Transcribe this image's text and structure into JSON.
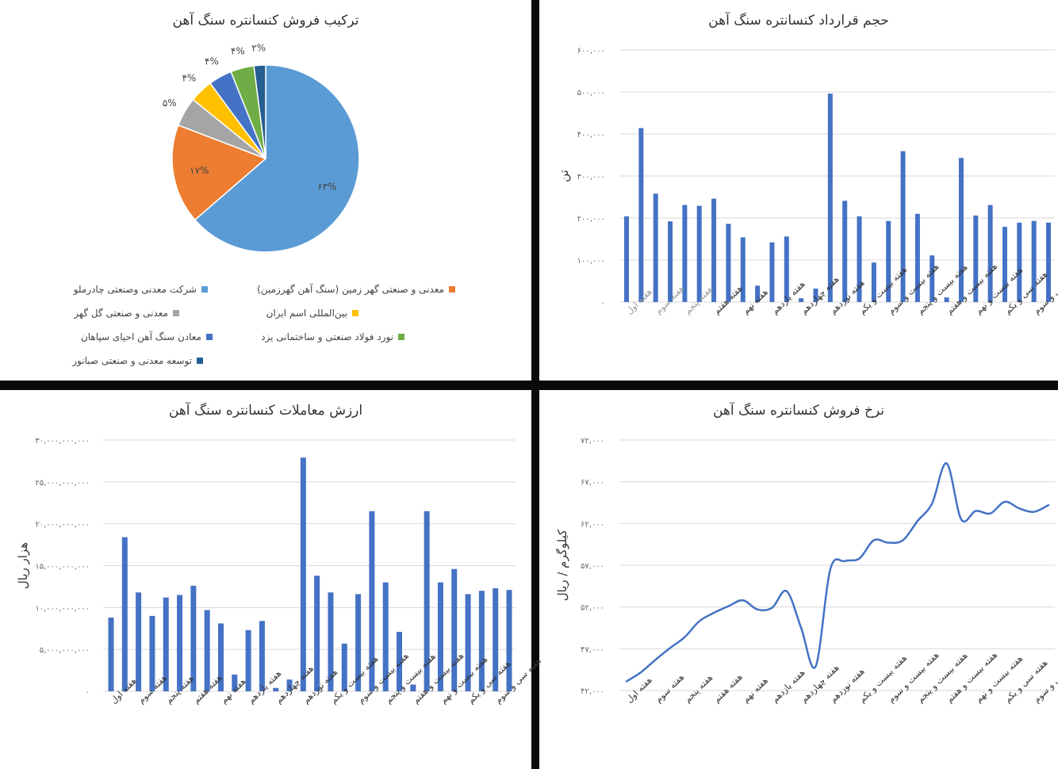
{
  "week_labels": [
    "هفته اول",
    "هفته سوم",
    "هفته پنجم",
    "هفته هفتم",
    "هفته نهم",
    "هفته یازدهم",
    "هفته چهاردهم",
    "هفته نوزدهم",
    "هفته بیست و یکم",
    "هفته بیست و سوم",
    "هفته بیست و پنجم",
    "هفته بیست و هفتم",
    "هفته بیست و نهم",
    "هفته سی و یکم",
    "هفته سی و سوم"
  ],
  "chart_data": [
    {
      "id": "pie",
      "type": "pie",
      "title": "ترکیب فروش کنسانتره سنگ آهن",
      "legend_position": "bottom",
      "slices": [
        {
          "name": "شرکت معدنی وصنعتی چادرملو",
          "value": 63,
          "label": "۶۳%",
          "color": "#5B9BD5"
        },
        {
          "name": "معدنی و صنعتی گهر زمین (سنگ آهن گهرزمین)",
          "value": 17,
          "label": "۱۷%",
          "color": "#ED7D31"
        },
        {
          "name": "معدنی و صنعتی گل گهر",
          "value": 5,
          "label": "۵%",
          "color": "#A5A5A5"
        },
        {
          "name": "بین‌المللی اسم ایران",
          "value": 4,
          "label": "۴%",
          "color": "#FFC000"
        },
        {
          "name": "معادن سنگ آهن احیای سپاهان",
          "value": 4,
          "label": "۴%",
          "color": "#4472C4"
        },
        {
          "name": "نورد فولاد صنعتی و ساختمانی یزد",
          "value": 4,
          "label": "۴%",
          "color": "#70AD47"
        },
        {
          "name": "توسعه معدنی و صنعتی صبانور",
          "value": 2,
          "label": "۲%",
          "color": "#255E91"
        }
      ]
    },
    {
      "id": "volume",
      "type": "bar",
      "title": "حجم قرارداد کنسانتره سنگ آهن",
      "ylabel": "تن",
      "ylim": [
        0,
        600000
      ],
      "yticks": [
        "۰",
        "۱۰۰,۰۰۰",
        "۲۰۰,۰۰۰",
        "۳۰۰,۰۰۰",
        "۴۰۰,۰۰۰",
        "۵۰۰,۰۰۰",
        "۶۰۰,۰۰۰"
      ],
      "grid": true,
      "color": "#4472C4",
      "values": [
        204000,
        414000,
        258000,
        192000,
        231000,
        229000,
        246000,
        186000,
        154000,
        39000,
        142000,
        156000,
        9000,
        32000,
        496000,
        241000,
        204000,
        94000,
        193000,
        359000,
        210000,
        111000,
        11000,
        343000,
        206000,
        231000,
        179000,
        189000,
        193000,
        189000
      ]
    },
    {
      "id": "value",
      "type": "bar",
      "title": "ارزش معاملات کنسانتره سنگ آهن",
      "ylabel": "هزار ریال",
      "ylim": [
        0,
        30000000000
      ],
      "yticks": [
        "۰",
        "۵,۰۰۰,۰۰۰,۰۰۰",
        "۱۰,۰۰۰,۰۰۰,۰۰۰",
        "۱۵,۰۰۰,۰۰۰,۰۰۰",
        "۲۰,۰۰۰,۰۰۰,۰۰۰",
        "۲۵,۰۰۰,۰۰۰,۰۰۰",
        "۳۰,۰۰۰,۰۰۰,۰۰۰"
      ],
      "grid": true,
      "color": "#4472C4",
      "values": [
        8800000000,
        18400000000,
        11800000000,
        9000000000,
        11200000000,
        11500000000,
        12600000000,
        9700000000,
        8100000000,
        2000000000,
        7300000000,
        8400000000,
        400000000,
        1400000000,
        27900000000,
        13800000000,
        11800000000,
        5700000000,
        11600000000,
        21500000000,
        13000000000,
        7100000000,
        800000000,
        21500000000,
        13000000000,
        14600000000,
        11600000000,
        12000000000,
        12300000000,
        12100000000
      ]
    },
    {
      "id": "price",
      "type": "line",
      "title": "نرخ فروش کنسانتره سنگ آهن",
      "ylabel": "کیلوگرم / ریال",
      "ylim": [
        42000,
        72000
      ],
      "yticks": [
        "۴۲,۰۰۰",
        "۴۷,۰۰۰",
        "۵۲,۰۰۰",
        "۵۷,۰۰۰",
        "۶۲,۰۰۰",
        "۶۷,۰۰۰",
        "۷۲,۰۰۰"
      ],
      "grid": true,
      "color": "#4472C4",
      "values": [
        43100,
        44200,
        45700,
        47100,
        48400,
        50300,
        51300,
        52100,
        52800,
        51700,
        51900,
        53900,
        49500,
        44900,
        56500,
        57500,
        57800,
        60000,
        59700,
        60000,
        62300,
        64400,
        69200,
        62500,
        63500,
        63200,
        64600,
        63800,
        63400,
        64200
      ]
    }
  ]
}
